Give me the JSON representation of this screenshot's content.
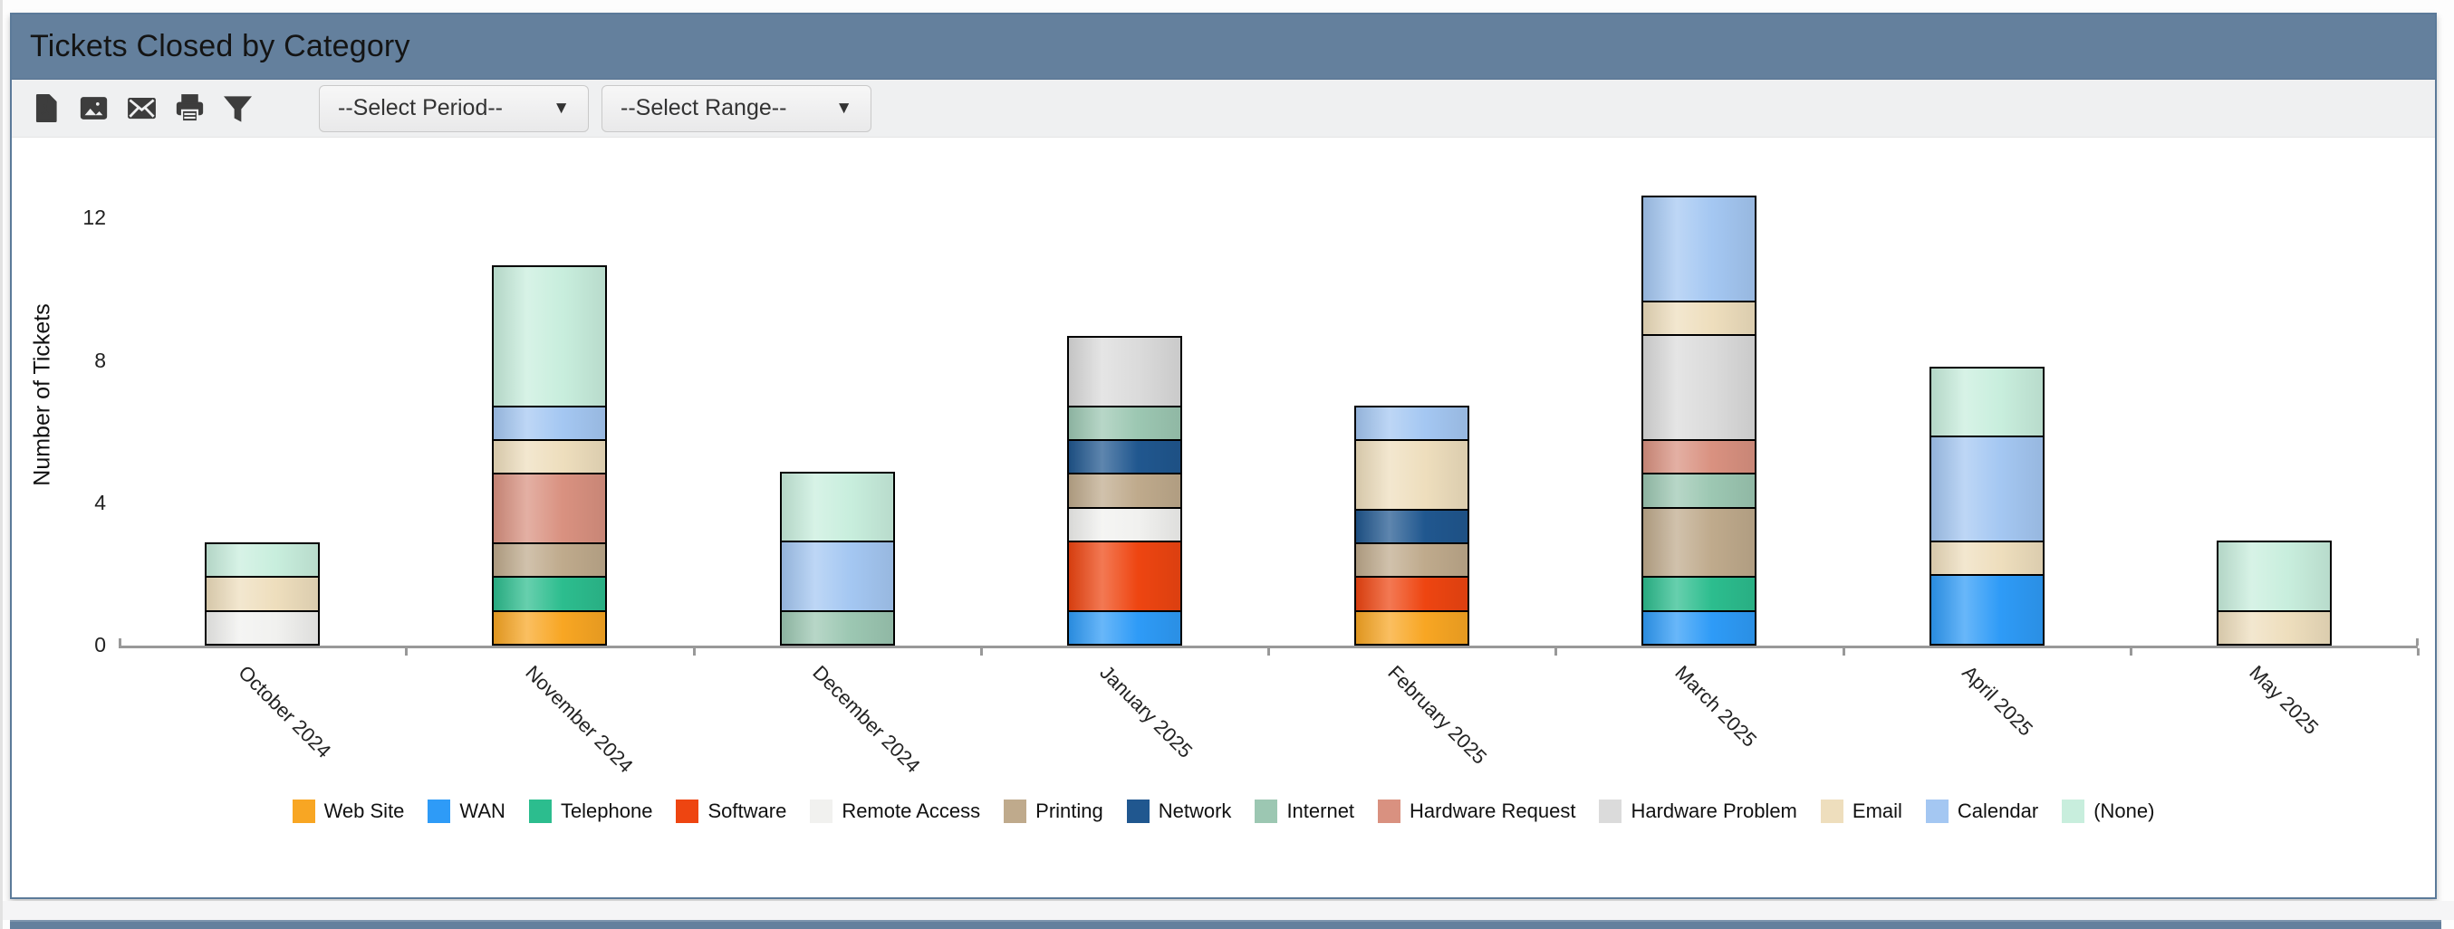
{
  "window": {
    "title": "Tickets Closed by Category"
  },
  "toolbar": {
    "icons": [
      "pdf-export-icon",
      "image-export-icon",
      "email-icon",
      "print-icon",
      "filter-icon"
    ],
    "period_dropdown": {
      "value": "--Select Period--",
      "caret": "▼"
    },
    "range_dropdown": {
      "value": "--Select Range--",
      "caret": "▼"
    }
  },
  "chart_data": {
    "type": "bar",
    "stacked": true,
    "title": "Tickets Closed by Category",
    "xlabel": "",
    "ylabel": "Number of Tickets",
    "yticks": [
      0,
      4,
      8,
      12
    ],
    "ylim": [
      0,
      13.5
    ],
    "grid": false,
    "legend_position": "bottom",
    "categories": [
      "October 2024",
      "November 2024",
      "December 2024",
      "January 2025",
      "February 2025",
      "March 2025",
      "April 2025",
      "May 2025"
    ],
    "series": [
      {
        "name": "Web Site",
        "color": "#F8A623",
        "values": [
          0,
          1,
          0,
          0,
          1,
          0,
          0,
          0
        ]
      },
      {
        "name": "WAN",
        "color": "#2E9BF7",
        "values": [
          0,
          0,
          0,
          1,
          0,
          1,
          2,
          0
        ]
      },
      {
        "name": "Telephone",
        "color": "#2CBD8E",
        "values": [
          0,
          1,
          0,
          0,
          0,
          1,
          0,
          0
        ]
      },
      {
        "name": "Software",
        "color": "#EE4511",
        "values": [
          0,
          0,
          0,
          2,
          1,
          0,
          0,
          0
        ]
      },
      {
        "name": "Remote Access",
        "color": "#F1F1EF",
        "values": [
          1,
          0,
          0,
          1,
          0,
          0,
          0,
          0
        ]
      },
      {
        "name": "Printing",
        "color": "#BFAA8C",
        "values": [
          0,
          1,
          0,
          1,
          1,
          2,
          0,
          0
        ]
      },
      {
        "name": "Network",
        "color": "#20578F",
        "values": [
          0,
          0,
          0,
          1,
          1,
          0,
          0,
          0
        ]
      },
      {
        "name": "Internet",
        "color": "#9CC7B2",
        "values": [
          0,
          0,
          1,
          1,
          0,
          1,
          0,
          0
        ]
      },
      {
        "name": "Hardware Request",
        "color": "#D99180",
        "values": [
          0,
          2,
          0,
          0,
          0,
          1,
          0,
          0
        ]
      },
      {
        "name": "Hardware Problem",
        "color": "#DBDBDB",
        "values": [
          0,
          0,
          0,
          2,
          0,
          3,
          0,
          0
        ]
      },
      {
        "name": "Email",
        "color": "#EEDEBD",
        "values": [
          1,
          1,
          0,
          0,
          2,
          1,
          1,
          1
        ]
      },
      {
        "name": "Calendar",
        "color": "#A4C7F2",
        "values": [
          0,
          1,
          2,
          0,
          1,
          3,
          3,
          0
        ]
      },
      {
        "name": "(None)",
        "color": "#C8EEDD",
        "values": [
          1,
          4,
          2,
          0,
          0,
          0,
          2,
          2
        ]
      }
    ],
    "totals": [
      3,
      11,
      5,
      9,
      7,
      13,
      8,
      3
    ]
  }
}
